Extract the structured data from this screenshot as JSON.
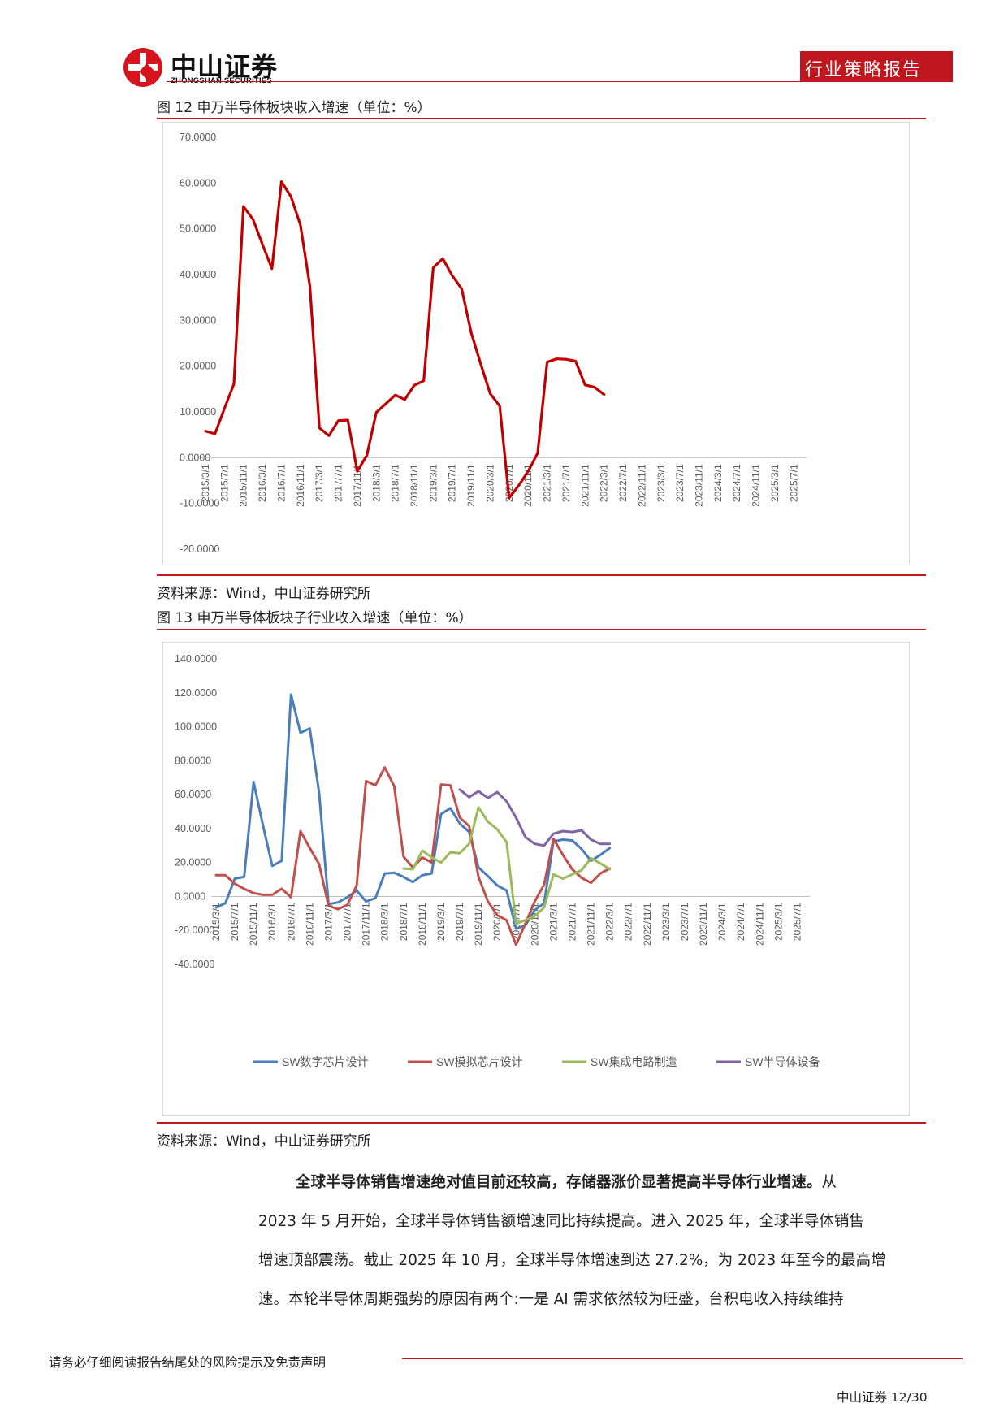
{
  "header": {
    "brand_cn": "中山证券",
    "brand_en": "ZHONGSHAN SECURITIES",
    "report_type": "行业策略报告"
  },
  "figure12": {
    "caption": "图 12 申万半导体板块收入增速（单位：%）",
    "source": "资料来源：Wind，中山证券研究所"
  },
  "figure13": {
    "caption": "图 13 申万半导体板块子行业收入增速（单位：%）",
    "source": "资料来源：Wind，中山证券研究所"
  },
  "body": {
    "lead_bold": "全球半导体销售增速绝对值目前还较高，存储器涨价显著提高半导体行业增速。",
    "lead_rest": "从",
    "line2": "2023 年 5 月开始，全球半导体销售额增速同比持续提高。进入 2025 年，全球半导体销售",
    "line3": "增速顶部震荡。截止 2025 年 10 月，全球半导体增速到达 27.2%，为 2023 年至今的最高增",
    "line4": "速。本轮半导体周期强势的原因有两个:一是 AI 需求依然较为旺盛，台积电收入持续维持"
  },
  "footer": {
    "disclaimer": "请务必仔细阅读报告结尾处的风险提示及免责声明",
    "page": "中山证券 12/30"
  },
  "chart_data": [
    {
      "type": "line",
      "title": "申万半导体板块收入增速",
      "ylim": [
        -20,
        70
      ],
      "yticks": [
        "70.0000",
        "60.0000",
        "50.0000",
        "40.0000",
        "30.0000",
        "20.0000",
        "10.0000",
        "0.0000",
        "-10.0000",
        "-20.0000"
      ],
      "yticks_values": [
        70,
        60,
        50,
        40,
        30,
        20,
        10,
        0,
        -10,
        -20
      ],
      "xticks": [
        "2015/3/1",
        "2015/7/1",
        "2015/11/1",
        "2016/3/1",
        "2016/7/1",
        "2016/11/1",
        "2017/3/1",
        "2017/7/1",
        "2017/11/1",
        "2018/3/1",
        "2018/7/1",
        "2018/11/1",
        "2019/3/1",
        "2019/7/1",
        "2019/11/1",
        "2020/3/1",
        "2020/7/1",
        "2020/11/1",
        "2021/3/1",
        "2021/7/1",
        "2021/11/1",
        "2022/3/1",
        "2022/7/1",
        "2022/11/1",
        "2023/3/1",
        "2023/7/1",
        "2023/11/1",
        "2024/3/1",
        "2024/7/1",
        "2024/11/1",
        "2025/3/1",
        "2025/7/1"
      ],
      "n_points": 64,
      "color": "#c00000",
      "series": [
        {
          "name": "申万半导体",
          "values": [
            5.8,
            5.2,
            10.8,
            16.1,
            54.9,
            52.1,
            46.6,
            41.3,
            60.3,
            57.1,
            50.9,
            37.5,
            6.5,
            4.8,
            8.1,
            8.2,
            -3.0,
            0.5,
            9.9,
            11.8,
            13.7,
            12.7,
            15.8,
            16.8,
            41.5,
            43.5,
            39.8,
            36.9,
            27.3,
            20.5,
            14.0,
            11.3,
            -8.8,
            -6.1,
            -3.0,
            1.0,
            20.9,
            21.6,
            21.5,
            21.1,
            15.9,
            15.4,
            13.8
          ]
        }
      ]
    },
    {
      "type": "line",
      "title": "申万半导体板块子行业收入增速",
      "ylim": [
        -40,
        140
      ],
      "yticks": [
        "140.0000",
        "120.0000",
        "100.0000",
        "80.0000",
        "60.0000",
        "40.0000",
        "20.0000",
        "0.0000",
        "-20.0000",
        "-40.0000"
      ],
      "yticks_values": [
        140,
        120,
        100,
        80,
        60,
        40,
        20,
        0,
        -20,
        -40
      ],
      "xticks": [
        "2015/3/1",
        "2015/7/1",
        "2015/11/1",
        "2016/3/1",
        "2016/7/1",
        "2016/11/1",
        "2017/3/1",
        "2017/7/1",
        "2017/11/1",
        "2018/3/1",
        "2018/7/1",
        "2018/11/1",
        "2019/3/1",
        "2019/7/1",
        "2019/11/1",
        "2020/3/1",
        "2020/7/1",
        "2020/11/1",
        "2021/3/1",
        "2021/7/1",
        "2021/11/1",
        "2022/3/1",
        "2022/7/1",
        "2022/11/1",
        "2023/3/1",
        "2023/7/1",
        "2023/11/1",
        "2024/3/1",
        "2024/7/1",
        "2024/11/1",
        "2025/3/1",
        "2025/7/1"
      ],
      "n_points": 64,
      "series": [
        {
          "name": "SW数字芯片设计",
          "color": "#4a7ebb",
          "start": 0,
          "values": [
            -6.5,
            -4.0,
            10.5,
            11.5,
            67.5,
            42.0,
            18.0,
            21.0,
            119.0,
            96.5,
            99.0,
            61.0,
            -4.5,
            -3.5,
            -0.5,
            3.5,
            -3.0,
            -1.0,
            13.5,
            14.0,
            11.5,
            8.5,
            12.5,
            13.5,
            48.5,
            52.0,
            43.0,
            38.0,
            17.0,
            12.0,
            6.5,
            3.5,
            -19.0,
            -17.0,
            -8.0,
            -4.0,
            32.5,
            33.5,
            33.0,
            28.0,
            21.0,
            24.5,
            28.5
          ]
        },
        {
          "name": "SW模拟芯片设计",
          "color": "#c0504d",
          "start": 0,
          "values": [
            12.5,
            12.5,
            7.5,
            4.5,
            2.0,
            1.0,
            1.0,
            4.5,
            -0.5,
            38.5,
            28.5,
            19.0,
            -5.5,
            -7.5,
            -5.0,
            6.5,
            68.0,
            65.5,
            76.0,
            65.0,
            23.5,
            17.0,
            23.0,
            20.0,
            66.0,
            65.5,
            46.5,
            41.5,
            11.5,
            -3.0,
            -11.0,
            -14.0,
            -28.5,
            -16.0,
            -3.0,
            7.0,
            34.0,
            24.5,
            16.0,
            11.0,
            8.0,
            13.5,
            16.5
          ]
        },
        {
          "name": "SW集成电路制造",
          "color": "#9bbb59",
          "start": 20,
          "values": [
            16.5,
            16.0,
            27.0,
            23.0,
            20.0,
            26.0,
            25.5,
            31.0,
            52.5,
            44.0,
            39.5,
            32.0,
            -16.0,
            -14.0,
            -11.5,
            -6.5,
            13.0,
            10.5,
            13.0,
            15.5,
            22.5,
            19.5,
            16.0
          ]
        },
        {
          "name": "SW半导体设备",
          "color": "#8064a2",
          "start": 26,
          "values": [
            63.0,
            58.5,
            62.0,
            58.0,
            61.5,
            56.0,
            46.5,
            35.0,
            31.0,
            30.0,
            37.0,
            38.5,
            38.0,
            39.0,
            33.5,
            31.0,
            31.0
          ]
        }
      ],
      "legend": "bottom"
    }
  ]
}
